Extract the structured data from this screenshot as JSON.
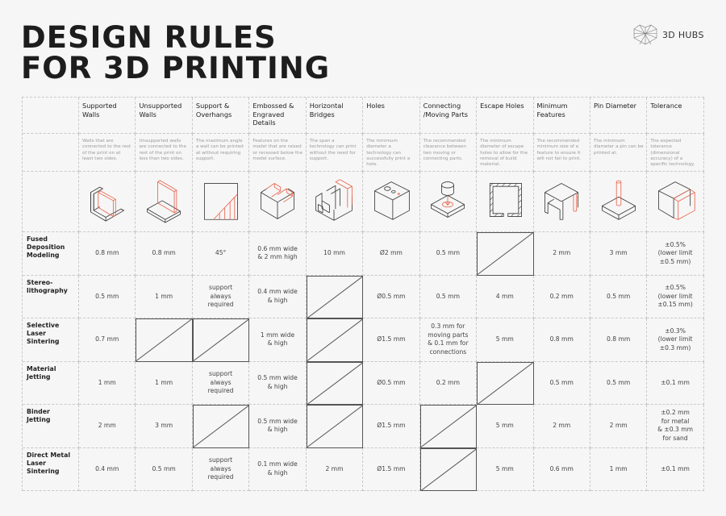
{
  "title": {
    "line1": "DESIGN RULES",
    "line2": "FOR 3D PRINTING"
  },
  "logo": {
    "text": "3D HUBS",
    "icon": "geodesic-hex-logo"
  },
  "colors": {
    "accent": "#e8644d",
    "line": "#333333",
    "description": "#9a9a9a"
  },
  "columns": [
    {
      "header": "Supported Walls",
      "description": "Walls that are connected to the rest of the print on at least two sides.",
      "icon": "supported-walls-icon"
    },
    {
      "header": "Unsupported Walls",
      "description": "Unsupported walls are connected to the rest of the print on less than two sides.",
      "icon": "unsupported-walls-icon"
    },
    {
      "header": "Support & Overhangs",
      "description": "The maximum angle a wall can be printed at without requiring support.",
      "icon": "overhang-angle-icon"
    },
    {
      "header": "Embossed & Engraved Details",
      "description": "Features on the model that are raised or recessed below the model surface.",
      "icon": "embossed-details-icon"
    },
    {
      "header": "Horizontal Bridges",
      "description": "The span a technology can print without the need for support.",
      "icon": "horizontal-bridges-icon"
    },
    {
      "header": "Holes",
      "description": "The minimum diameter a technology can successfully print a hole.",
      "icon": "holes-icon"
    },
    {
      "header": "Connecting /Moving Parts",
      "description": "The recommended clearance between two moving or connecting parts.",
      "icon": "moving-parts-icon"
    },
    {
      "header": "Escape Holes",
      "description": "The minimum diameter of escape holes to allow for the removal of build material.",
      "icon": "escape-holes-icon"
    },
    {
      "header": "Minimum Features",
      "description": "The recommended minimum size of a feature to ensure it will not fail to print.",
      "icon": "minimum-features-icon"
    },
    {
      "header": "Pin Diameter",
      "description": "The minimum diameter a pin can be printed at.",
      "icon": "pin-diameter-icon"
    },
    {
      "header": "Tolerance",
      "description": "The expected tolerance (dimensional accuracy) of a specific technology.",
      "icon": "tolerance-cube-icon"
    }
  ],
  "rows": [
    {
      "technology": "Fused Deposition Modeling",
      "values": [
        "0.8 mm",
        "0.8 mm",
        "45°",
        "0.6 mm wide\n& 2 mm high",
        "10 mm",
        "Ø2 mm",
        "0.5 mm",
        null,
        "2 mm",
        "3 mm",
        "±0.5%\n(lower limit\n±0.5 mm)"
      ]
    },
    {
      "technology": "Stereo-lithography",
      "values": [
        "0.5 mm",
        "1 mm",
        "support\nalways\nrequired",
        "0.4 mm wide\n& high",
        null,
        "Ø0.5 mm",
        "0.5 mm",
        "4 mm",
        "0.2 mm",
        "0.5 mm",
        "±0.5%\n(lower limit\n±0.15 mm)"
      ]
    },
    {
      "technology": "Selective Laser Sintering",
      "values": [
        "0.7 mm",
        null,
        null,
        "1 mm wide\n& high",
        null,
        "Ø1.5 mm",
        "0.3 mm for\nmoving parts\n& 0.1 mm for\nconnections",
        "5 mm",
        "0.8 mm",
        "0.8 mm",
        "±0.3%\n(lower limit\n±0.3 mm)"
      ]
    },
    {
      "technology": "Material Jetting",
      "values": [
        "1 mm",
        "1 mm",
        "support\nalways\nrequired",
        "0.5 mm wide\n& high",
        null,
        "Ø0.5 mm",
        "0.2 mm",
        null,
        "0.5 mm",
        "0.5 mm",
        "±0.1 mm"
      ]
    },
    {
      "technology": "Binder Jetting",
      "values": [
        "2 mm",
        "3 mm",
        null,
        "0.5 mm wide\n& high",
        null,
        "Ø1.5 mm",
        null,
        "5 mm",
        "2 mm",
        "2 mm",
        "±0.2 mm\nfor metal\n& ±0.3 mm\nfor sand"
      ]
    },
    {
      "technology": "Direct Metal Laser Sintering",
      "values": [
        "0.4 mm",
        "0.5 mm",
        "support\nalways\nrequired",
        "0.1 mm wide\n& high",
        "2 mm",
        "Ø1.5 mm",
        null,
        "5 mm",
        "0.6 mm",
        "1 mm",
        "±0.1 mm"
      ]
    }
  ]
}
